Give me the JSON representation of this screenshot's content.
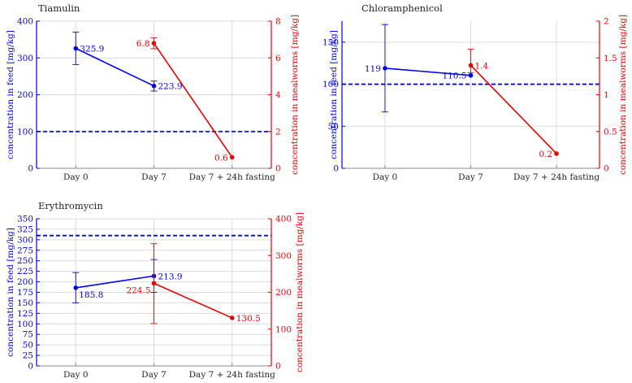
{
  "chart_data": [
    {
      "type": "line",
      "title": "Tiamulin",
      "categories": [
        "Day 0",
        "Day 7",
        "Day 7 + 24h fasting"
      ],
      "ylabel": "concentration in feed [mg/kg]",
      "y2label": "concentration in mealworms [mg/kg]",
      "ylim": [
        0,
        400
      ],
      "y2lim": [
        0,
        8
      ],
      "yticks": [
        "0",
        "100",
        "200",
        "300",
        "400"
      ],
      "y2ticks": [
        "0",
        "2",
        "4",
        "6",
        "8"
      ],
      "threshold": {
        "value": 100,
        "axis": "left"
      },
      "series": [
        {
          "name": "feed",
          "axis": "left",
          "color": "#0000ee",
          "points": [
            {
              "cat": 0,
              "y": 325.9,
              "err": [
                282,
                370
              ],
              "label": "325.9",
              "pos": "right"
            },
            {
              "cat": 1,
              "y": 223.9,
              "err": [
                210,
                237
              ],
              "label": "223.9",
              "pos": "right"
            }
          ]
        },
        {
          "name": "mealworms",
          "axis": "right",
          "color": "#ee0000",
          "points": [
            {
              "cat": 1,
              "y": 6.8,
              "err": [
                6.5,
                7.1
              ],
              "label": "6.8",
              "pos": "left"
            },
            {
              "cat": 2,
              "y": 0.6,
              "err": null,
              "label": "0.6",
              "pos": "left"
            }
          ]
        }
      ]
    },
    {
      "type": "line",
      "title": "Chloramphenicol",
      "categories": [
        "Day 0",
        "Day 7",
        "Day 7 + 24h fasting"
      ],
      "ylabel": "concentration in feed [mg/kg]",
      "y2label": "concentration in mealworms [mg/kg]",
      "ylim": [
        0,
        175
      ],
      "y2lim": [
        0,
        2
      ],
      "yticks": [
        "0",
        "50",
        "100",
        "150"
      ],
      "y2ticks": [
        "0",
        "0.5",
        "1",
        "1.5",
        "2"
      ],
      "threshold": {
        "value": 100,
        "axis": "left"
      },
      "series": [
        {
          "name": "feed",
          "axis": "left",
          "color": "#0000ee",
          "points": [
            {
              "cat": 0,
              "y": 119,
              "err": [
                67,
                171
              ],
              "label": "119",
              "pos": "left"
            },
            {
              "cat": 1,
              "y": 110.5,
              "err": null,
              "label": "110.5",
              "pos": "left"
            }
          ]
        },
        {
          "name": "mealworms",
          "axis": "right",
          "color": "#ee0000",
          "points": [
            {
              "cat": 1,
              "y": 1.4,
              "err": [
                1.3,
                1.62
              ],
              "label": "1.4",
              "pos": "right"
            },
            {
              "cat": 2,
              "y": 0.2,
              "err": null,
              "label": "0.2",
              "pos": "left"
            }
          ]
        }
      ]
    },
    {
      "type": "line",
      "title": "Erythromycin",
      "categories": [
        "Day 0",
        "Day 7",
        "Day 7 + 24h fasting"
      ],
      "ylabel": "concentration in feed [mg/kg]",
      "y2label": "concentration in mealworms [mg/kg]",
      "ylim": [
        0,
        350
      ],
      "y2lim": [
        0,
        400
      ],
      "yticks": [
        "0",
        "25",
        "50",
        "75",
        "100",
        "125",
        "150",
        "175",
        "200",
        "225",
        "250",
        "275",
        "300",
        "325",
        "350"
      ],
      "y2ticks": [
        "0",
        "100",
        "200",
        "300",
        "400"
      ],
      "threshold": {
        "value": 310,
        "axis": "left"
      },
      "series": [
        {
          "name": "feed",
          "axis": "left",
          "color": "#0000ee",
          "points": [
            {
              "cat": 0,
              "y": 185.8,
              "err": [
                150,
                222
              ],
              "label": "185.8",
              "pos": "right-below"
            },
            {
              "cat": 1,
              "y": 213.9,
              "err": [
                175,
                253
              ],
              "label": "213.9",
              "pos": "right"
            }
          ]
        },
        {
          "name": "mealworms",
          "axis": "right",
          "color": "#ee0000",
          "points": [
            {
              "cat": 1,
              "y": 224.5,
              "err": [
                115,
                332
              ],
              "label": "224.5",
              "pos": "left-below"
            },
            {
              "cat": 2,
              "y": 130.5,
              "err": null,
              "label": "130.5",
              "pos": "right"
            }
          ]
        }
      ]
    }
  ]
}
